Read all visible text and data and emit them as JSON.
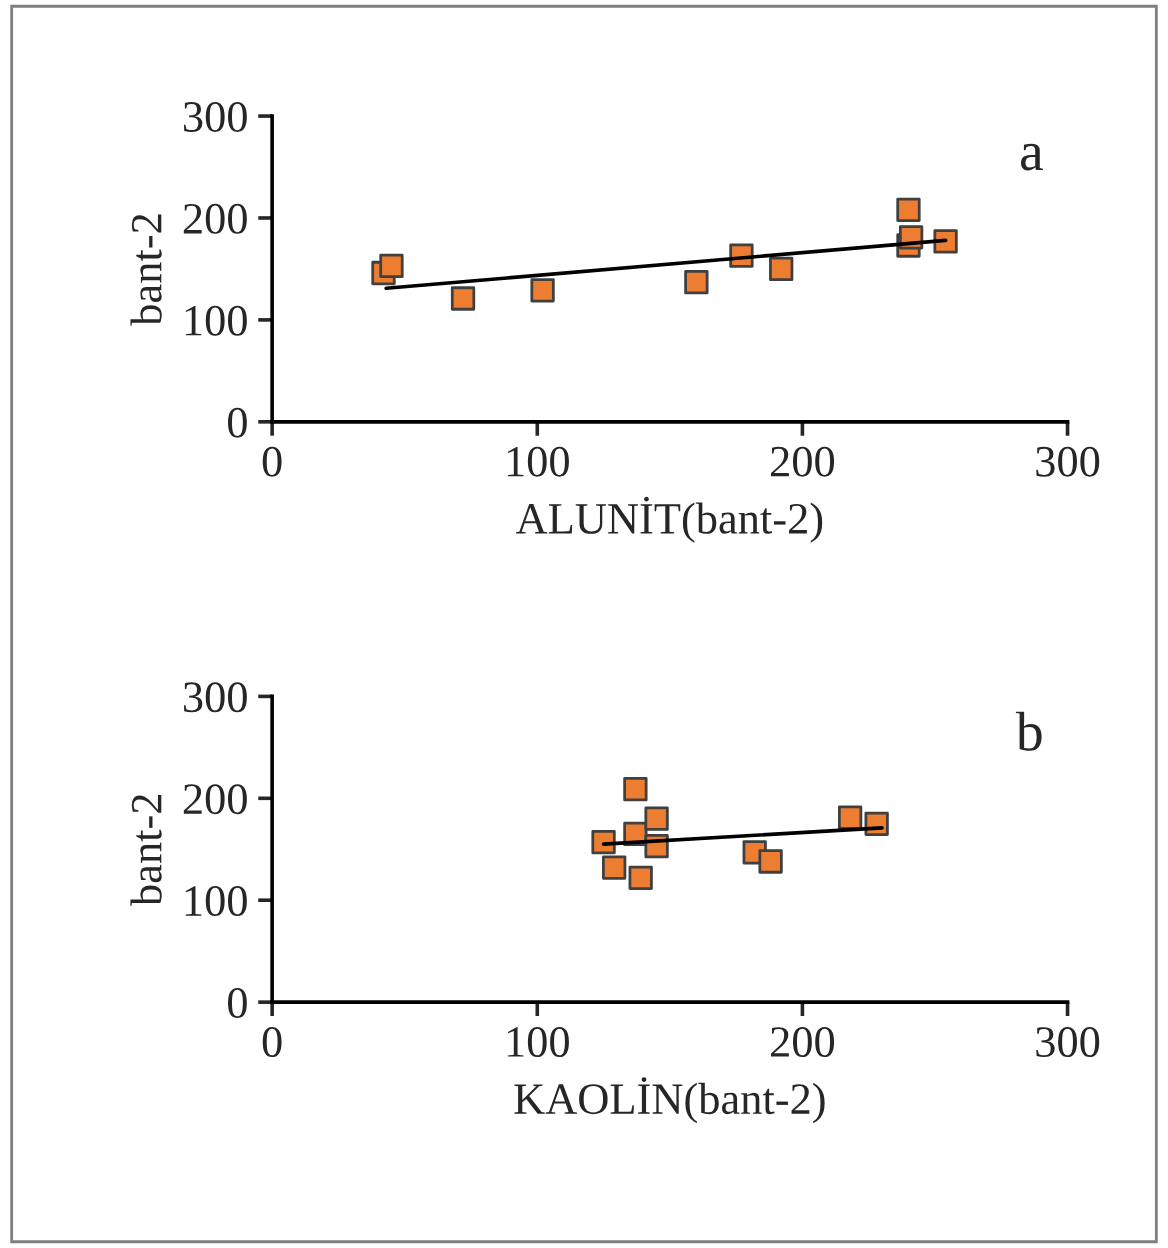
{
  "chart_data": [
    {
      "type": "scatter",
      "xlabel": "ALUNİT(bant-2)",
      "ylabel": "bant-2",
      "annotations": [
        "a"
      ],
      "grid": false,
      "legend": false,
      "xlim": [
        0,
        300
      ],
      "xticks": [
        0,
        100,
        200,
        300
      ],
      "ylim": [
        0,
        300
      ],
      "yticks": [
        0,
        100,
        200,
        300
      ],
      "series": [
        {
          "color": "#ed7d31",
          "marker": "square",
          "x": [
            42,
            45,
            72,
            102,
            160,
            177,
            192,
            240,
            240,
            241,
            254
          ],
          "values": [
            146,
            153,
            121,
            129,
            137,
            163,
            150,
            208,
            173,
            181,
            177
          ]
        },
        {
          "type": "line",
          "marker": "none",
          "color": "#000000",
          "x": [
            43,
            254
          ],
          "values": [
            131,
            178
          ]
        }
      ]
    },
    {
      "type": "scatter",
      "xlabel": "KAOLİN(bant-2)",
      "ylabel": "bant-2",
      "annotations": [
        "b"
      ],
      "grid": false,
      "legend": false,
      "xlim": [
        0,
        300
      ],
      "xticks": [
        0,
        100,
        200,
        300
      ],
      "ylim": [
        0,
        300
      ],
      "yticks": [
        0,
        100,
        200,
        300
      ],
      "series": [
        {
          "color": "#ed7d31",
          "marker": "square",
          "x": [
            125,
            129,
            137,
            137,
            139,
            145,
            145,
            182,
            188,
            218,
            228
          ],
          "values": [
            157,
            132,
            209,
            165,
            122,
            180,
            153,
            147,
            138,
            181,
            175
          ]
        },
        {
          "type": "line",
          "marker": "none",
          "color": "#000000",
          "x": [
            125,
            230
          ],
          "values": [
            155,
            171
          ]
        }
      ]
    }
  ]
}
